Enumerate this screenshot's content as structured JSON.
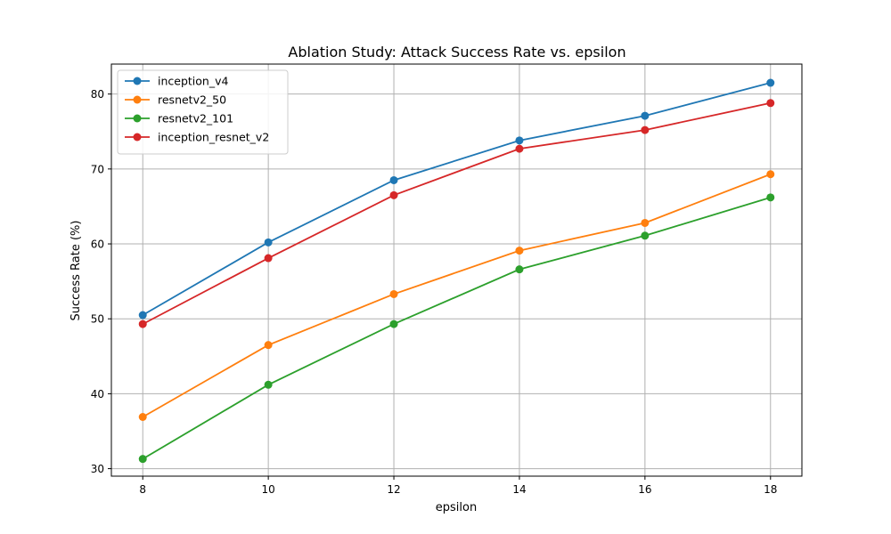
{
  "chart_data": {
    "type": "line",
    "title": "Ablation Study: Attack Success Rate vs. epsilon",
    "xlabel": "epsilon",
    "ylabel": "Success Rate (%)",
    "x": [
      8,
      10,
      12,
      14,
      16,
      18
    ],
    "xlim": [
      7.5,
      18.5
    ],
    "ylim": [
      29,
      84
    ],
    "xticks": [
      8,
      10,
      12,
      14,
      16,
      18
    ],
    "yticks": [
      30,
      40,
      50,
      60,
      70,
      80
    ],
    "grid": true,
    "legend_position": "top-left",
    "series": [
      {
        "name": "inception_v4",
        "color": "#1f77b4",
        "values": [
          50.5,
          60.2,
          68.5,
          73.8,
          77.1,
          81.5
        ]
      },
      {
        "name": "resnetv2_50",
        "color": "#ff7f0e",
        "values": [
          36.9,
          46.5,
          53.3,
          59.1,
          62.8,
          69.3
        ]
      },
      {
        "name": "resnetv2_101",
        "color": "#2ca02c",
        "values": [
          31.3,
          41.2,
          49.3,
          56.6,
          61.1,
          66.2
        ]
      },
      {
        "name": "inception_resnet_v2",
        "color": "#d62728",
        "values": [
          49.3,
          58.1,
          66.5,
          72.7,
          75.2,
          78.8
        ]
      }
    ]
  }
}
